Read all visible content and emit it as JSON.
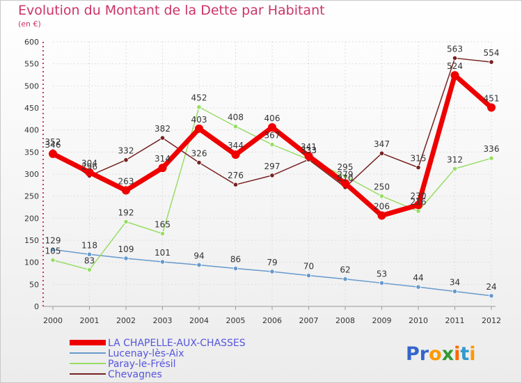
{
  "chart_data": {
    "type": "line",
    "title": "Evolution du Montant de la Dette par Habitant",
    "subtitle": "(en €)",
    "categories": [
      "2000",
      "2001",
      "2002",
      "2003",
      "2004",
      "2005",
      "2006",
      "2007",
      "2008",
      "2009",
      "2010",
      "2011",
      "2012"
    ],
    "y_ticks": [
      "0",
      "50",
      "100",
      "150",
      "200",
      "250",
      "300",
      "350",
      "400",
      "450",
      "500",
      "550",
      "600"
    ],
    "ylim": [
      0,
      600
    ],
    "grid": true,
    "legend_position": "bottom-left",
    "series": [
      {
        "name": "LA CHAPELLE-AUX-CHASSES",
        "color": "#ee0000",
        "values": [
          346,
          304,
          263,
          314,
          403,
          344,
          406,
          341,
          279,
          206,
          230,
          524,
          451
        ]
      },
      {
        "name": "Lucenay-lès-Aix",
        "color": "#6699cc",
        "values": [
          129,
          118,
          109,
          101,
          94,
          86,
          79,
          70,
          62,
          53,
          44,
          34,
          24
        ]
      },
      {
        "name": "Paray-le-Frésil",
        "color": "#99dd66",
        "values": [
          105,
          83,
          192,
          165,
          452,
          408,
          367,
          333,
          295,
          250,
          216,
          312,
          336
        ]
      },
      {
        "name": "Chevagnes",
        "color": "#772222",
        "values": [
          352,
          296,
          332,
          382,
          326,
          276,
          297,
          333,
          270,
          347,
          315,
          563,
          554
        ]
      }
    ]
  },
  "brand": {
    "text": "Proxiti",
    "letters": [
      "P",
      "r",
      "o",
      "x",
      "i",
      "t",
      "i"
    ],
    "colors": [
      "#3366cc",
      "#3366cc",
      "#ff9900",
      "#339933",
      "#ff6600",
      "#3399cc",
      "#ff9900"
    ]
  }
}
